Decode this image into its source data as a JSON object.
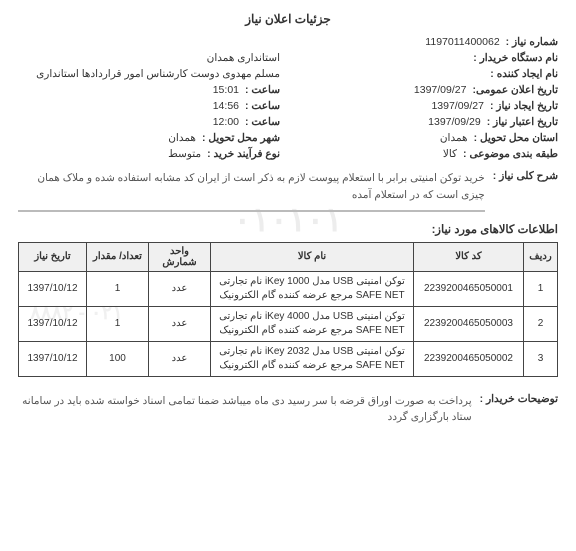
{
  "title": "جزئیات اعلان نیاز",
  "info": {
    "need_no_label": "شماره نیاز :",
    "need_no": "1197011400062",
    "org_label": "نام دستگاه خریدار :",
    "org": "استانداری همدان",
    "creator_label": "نام ایجاد کننده :",
    "creator": "مسلم مهدوی دوست کارشناس امور قراردادها استانداری",
    "public_date_label": "تاریخ اعلان عمومی:",
    "public_date": "1397/09/27",
    "public_time_label": "ساعت :",
    "public_time": "15:01",
    "create_date_label": "تاریخ ایجاد نیاز :",
    "create_date": "1397/09/27",
    "create_time_label": "ساعت :",
    "create_time": "14:56",
    "valid_date_label": "تاریخ اعتبار نیاز :",
    "valid_date": "1397/09/29",
    "valid_time_label": "ساعت :",
    "valid_time": "12:00",
    "province_label": "استان محل تحویل :",
    "province": "همدان",
    "city_label": "شهر محل تحویل :",
    "city": "همدان",
    "subject_class_label": "طبقه بندی موضوعی :",
    "subject_class": "کالا",
    "process_label": "نوع فرآیند خرید :",
    "process": "متوسط"
  },
  "desc_label": "شرح کلی نیاز :",
  "desc": "خرید توکن امنیتی برابر با استعلام پیوست لازم به ذکر است از ایران کد مشابه استفاده شده و ملاک همان چیزی است که در استعلام آمده",
  "section_title": "اطلاعات کالاهای مورد نیاز:",
  "table": {
    "headers": {
      "radif": "ردیف",
      "code": "کد کالا",
      "name": "نام کالا",
      "unit": "واحد شمارش",
      "qty": "تعداد/ مقدار",
      "date": "تاریخ نیاز"
    },
    "rows": [
      {
        "radif": "1",
        "code": "2239200465050001",
        "name": "توکن امنیتی USB مدل iKey 1000 نام تجارتی SAFE NET مرجع عرضه کننده گام الکترونیک",
        "unit": "عدد",
        "qty": "1",
        "date": "1397/10/12"
      },
      {
        "radif": "2",
        "code": "2239200465050003",
        "name": "توکن امنیتی USB مدل iKey 4000 نام تجارتی SAFE NET مرجع عرضه کننده گام الکترونیک",
        "unit": "عدد",
        "qty": "1",
        "date": "1397/10/12"
      },
      {
        "radif": "3",
        "code": "2239200465050002",
        "name": "توکن امنیتی USB مدل iKey 2032 نام تجارتی SAFE NET مرجع عرضه کننده گام الکترونیک",
        "unit": "عدد",
        "qty": "100",
        "date": "1397/10/12"
      }
    ]
  },
  "footer_label": "توضیحات خریدار :",
  "footer": "پرداخت به صورت اوراق قرضه با سر رسید دی ماه میباشد ضمنا تمامی اسناد خواسته شده باید در سامانه ستاد بارگزاری گردد",
  "wm1": "۰۱۰۱۰۱",
  "wm2": "۰۲۱ - ۸۸۸۲"
}
